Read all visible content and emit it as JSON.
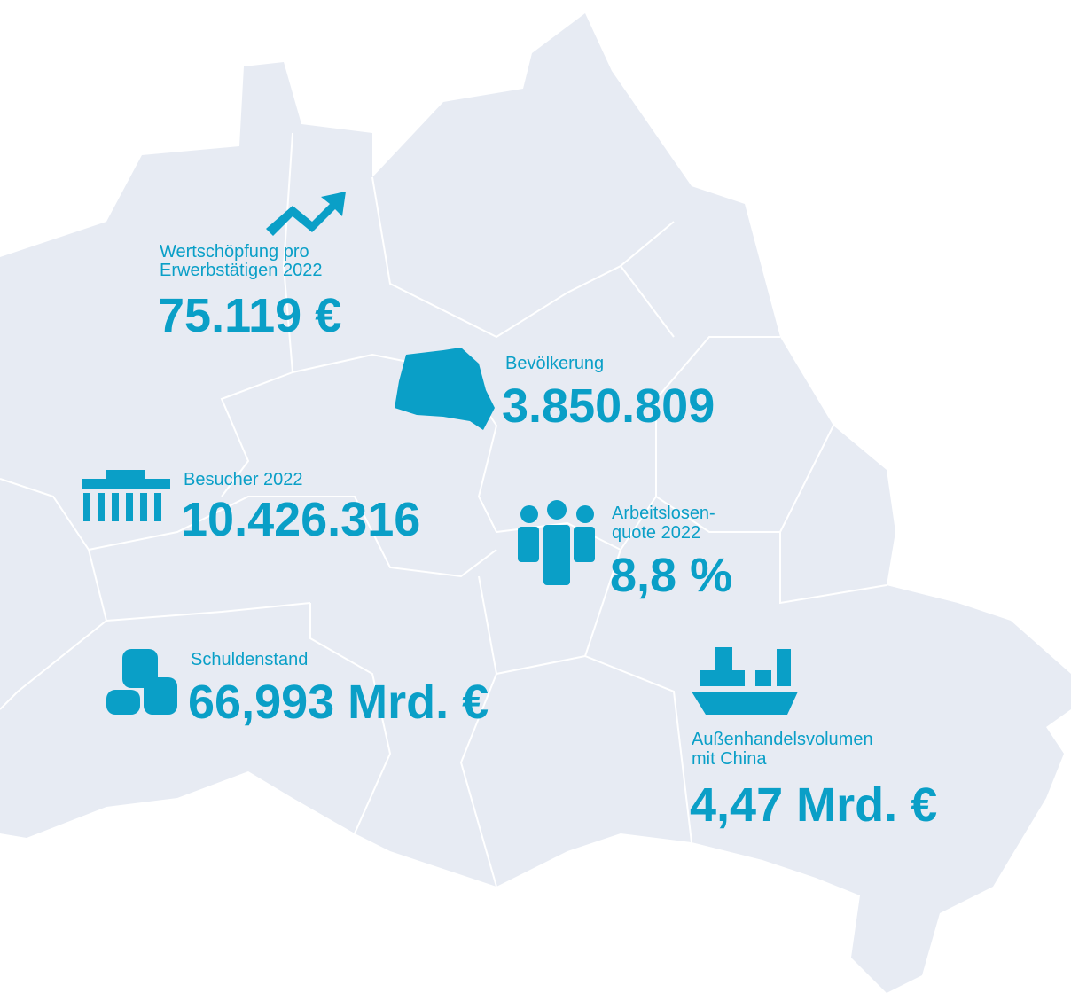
{
  "stats": [
    {
      "label": [
        "Wertschöpfung pro",
        "Erwerbstätigen 2022"
      ],
      "value": "75.119 €"
    },
    {
      "label": [
        "Bevölkerung"
      ],
      "value": "3.850.809"
    },
    {
      "label": [
        "Besucher 2022"
      ],
      "value": "10.426.316"
    },
    {
      "label": [
        "Arbeitslosen-",
        "quote 2022"
      ],
      "value": "8,8 %"
    },
    {
      "label": [
        "Schuldenstand"
      ],
      "value": "66,993 Mrd. €"
    },
    {
      "label": [
        "Außenhandelsvolumen",
        "mit China"
      ],
      "value": "4,47 Mrd. €"
    }
  ]
}
